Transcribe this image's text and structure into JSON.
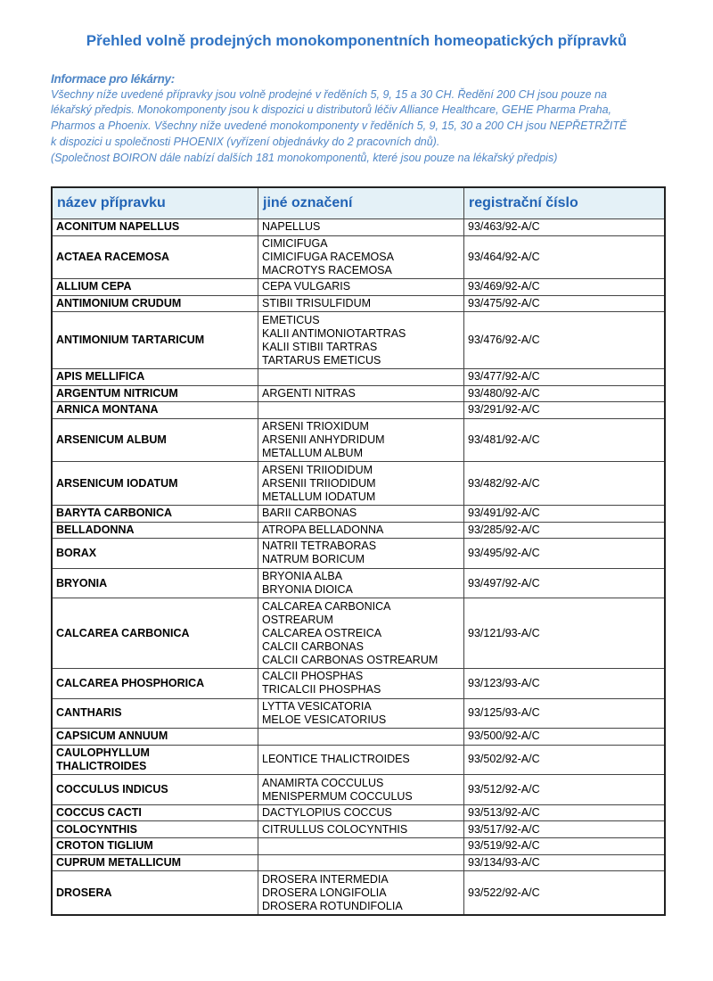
{
  "header": {
    "title": "Přehled volně prodejných monokomponentních homeopatických přípravků"
  },
  "info": {
    "heading": "Informace pro lékárny:",
    "lines": [
      "Všechny níže uvedené přípravky jsou volně prodejné v ředěních 5, 9, 15 a 30 CH. Ředění 200 CH jsou pouze na",
      "lékařský předpis. Monokomponenty jsou k dispozici u distributorů léčiv Alliance Healthcare, GEHE Pharma Praha,",
      "Pharmos a Phoenix. Všechny níže uvedené monokomponenty v ředěních 5, 9, 15, 30 a 200 CH jsou NEPŘETRŽITĚ",
      "k dispozici u společnosti PHOENIX (vyřízení objednávky do 2 pracovních dnů).",
      "(Společnost BOIRON dále nabízí dalších 181 monokomponentů, které jsou pouze na lékařský předpis)"
    ]
  },
  "table": {
    "columns": [
      "název přípravku",
      "jiné označení",
      "registrační číslo"
    ],
    "rows": [
      {
        "name": [
          "ACONITUM NAPELLUS"
        ],
        "aliases": [
          "NAPELLUS"
        ],
        "reg": "93/463/92-A/C"
      },
      {
        "name": [
          "ACTAEA RACEMOSA"
        ],
        "aliases": [
          "CIMICIFUGA",
          "CIMICIFUGA RACEMOSA",
          "MACROTYS RACEMOSA"
        ],
        "reg": "93/464/92-A/C"
      },
      {
        "name": [
          "ALLIUM CEPA"
        ],
        "aliases": [
          "CEPA VULGARIS"
        ],
        "reg": "93/469/92-A/C"
      },
      {
        "name": [
          "ANTIMONIUM CRUDUM"
        ],
        "aliases": [
          "STIBII TRISULFIDUM"
        ],
        "reg": "93/475/92-A/C"
      },
      {
        "name": [
          "ANTIMONIUM TARTARICUM"
        ],
        "aliases": [
          "EMETICUS",
          "KALII ANTIMONIOTARTRAS",
          "KALII STIBII TARTRAS",
          "TARTARUS EMETICUS"
        ],
        "reg": "93/476/92-A/C"
      },
      {
        "name": [
          "APIS MELLIFICA"
        ],
        "aliases": [],
        "reg": "93/477/92-A/C"
      },
      {
        "name": [
          "ARGENTUM NITRICUM"
        ],
        "aliases": [
          "ARGENTI NITRAS"
        ],
        "reg": "93/480/92-A/C"
      },
      {
        "name": [
          "ARNICA MONTANA"
        ],
        "aliases": [],
        "reg": "93/291/92-A/C"
      },
      {
        "name": [
          "ARSENICUM ALBUM"
        ],
        "aliases": [
          "ARSENI TRIOXIDUM",
          "ARSENII ANHYDRIDUM",
          "METALLUM ALBUM"
        ],
        "reg": "93/481/92-A/C"
      },
      {
        "name": [
          "ARSENICUM IODATUM"
        ],
        "aliases": [
          "ARSENI TRIIODIDUM",
          "ARSENII TRIIODIDUM",
          "METALLUM IODATUM"
        ],
        "reg": "93/482/92-A/C"
      },
      {
        "name": [
          "BARYTA CARBONICA"
        ],
        "aliases": [
          "BARII CARBONAS"
        ],
        "reg": "93/491/92-A/C"
      },
      {
        "name": [
          "BELLADONNA"
        ],
        "aliases": [
          "ATROPA BELLADONNA"
        ],
        "reg": "93/285/92-A/C"
      },
      {
        "name": [
          "BORAX"
        ],
        "aliases": [
          "NATRII TETRABORAS",
          "NATRUM BORICUM"
        ],
        "reg": "93/495/92-A/C"
      },
      {
        "name": [
          "BRYONIA"
        ],
        "aliases": [
          "BRYONIA ALBA",
          "BRYONIA DIOICA"
        ],
        "reg": "93/497/92-A/C"
      },
      {
        "name": [
          "CALCAREA CARBONICA"
        ],
        "aliases": [
          "CALCAREA CARBONICA",
          "OSTREARUM",
          "CALCAREA OSTREICA",
          "CALCII CARBONAS",
          "CALCII CARBONAS OSTREARUM"
        ],
        "reg": "93/121/93-A/C"
      },
      {
        "name": [
          "CALCAREA PHOSPHORICA"
        ],
        "aliases": [
          "CALCII PHOSPHAS",
          "TRICALCII PHOSPHAS"
        ],
        "reg": "93/123/93-A/C"
      },
      {
        "name": [
          "CANTHARIS"
        ],
        "aliases": [
          "LYTTA VESICATORIA",
          "MELOE VESICATORIUS"
        ],
        "reg": "93/125/93-A/C"
      },
      {
        "name": [
          "CAPSICUM ANNUUM"
        ],
        "aliases": [],
        "reg": "93/500/92-A/C"
      },
      {
        "name": [
          "CAULOPHYLLUM",
          "THALICTROIDES"
        ],
        "aliases": [
          "LEONTICE THALICTROIDES"
        ],
        "reg": "93/502/92-A/C"
      },
      {
        "name": [
          "COCCULUS INDICUS"
        ],
        "aliases": [
          "ANAMIRTA COCCULUS",
          "MENISPERMUM COCCULUS"
        ],
        "reg": "93/512/92-A/C"
      },
      {
        "name": [
          "COCCUS CACTI"
        ],
        "aliases": [
          "DACTYLOPIUS COCCUS"
        ],
        "reg": "93/513/92-A/C"
      },
      {
        "name": [
          "COLOCYNTHIS"
        ],
        "aliases": [
          "CITRULLUS COLOCYNTHIS"
        ],
        "reg": "93/517/92-A/C"
      },
      {
        "name": [
          "CROTON TIGLIUM"
        ],
        "aliases": [],
        "reg": "93/519/92-A/C"
      },
      {
        "name": [
          "CUPRUM METALLICUM"
        ],
        "aliases": [],
        "reg": "93/134/93-A/C"
      },
      {
        "name": [
          "DROSERA"
        ],
        "aliases": [
          "DROSERA INTERMEDIA",
          "DROSERA LONGIFOLIA",
          "DROSERA ROTUNDIFOLIA"
        ],
        "reg": "93/522/92-A/C"
      }
    ]
  }
}
